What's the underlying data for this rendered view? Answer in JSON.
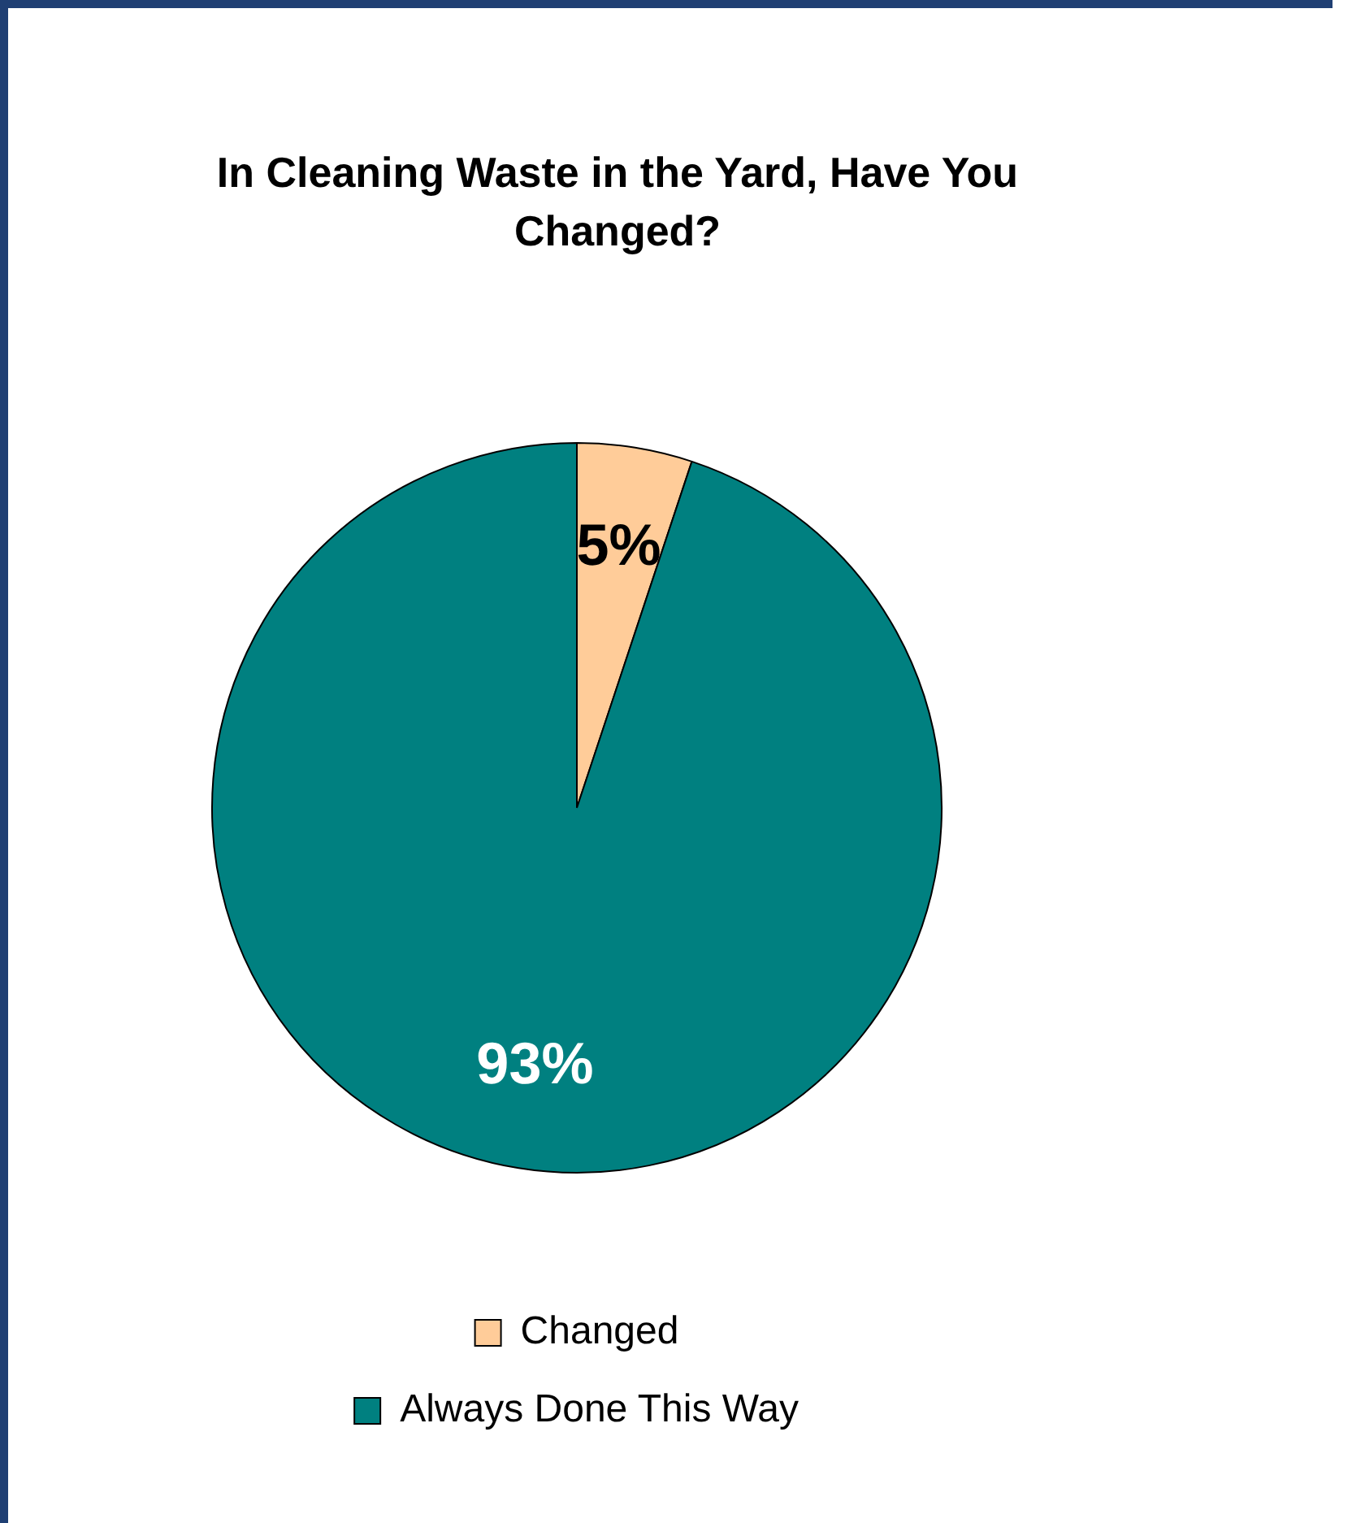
{
  "chart_data": {
    "type": "pie",
    "title": "In Cleaning Waste in the Yard, Have You Changed?",
    "categories": [
      "Changed",
      "Always Done This Way"
    ],
    "values": [
      5,
      93
    ],
    "colors": [
      "#ffcc99",
      "#008080"
    ],
    "data_labels": true,
    "value_labels": [
      "5%",
      "93%"
    ],
    "legend": "bottom"
  }
}
